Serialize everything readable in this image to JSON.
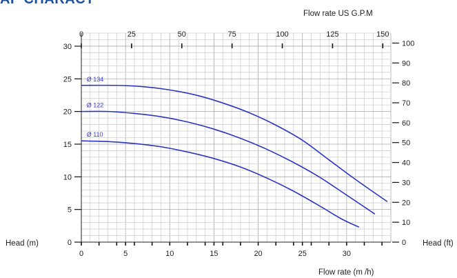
{
  "header": {
    "title": "AP CHARACT"
  },
  "chart_data": {
    "type": "line",
    "title": "",
    "xlabel": "Flow rate (m /h)",
    "x2label": "Flow rate US G.P.M",
    "ylabel": "Head (m)",
    "y2label": "Head (ft)",
    "xlim": [
      0,
      35
    ],
    "x2lim": [
      0,
      154
    ],
    "ylim": [
      0,
      32
    ],
    "y2lim": [
      0,
      105
    ],
    "x_ticks": [
      0,
      5,
      10,
      15,
      20,
      25,
      30
    ],
    "x2_ticks": [
      0,
      25,
      50,
      75,
      100,
      125,
      150
    ],
    "y_ticks": [
      0,
      5,
      10,
      15,
      20,
      25,
      30
    ],
    "y2_ticks": [
      0,
      10,
      20,
      30,
      40,
      50,
      60,
      70,
      80,
      90,
      100
    ],
    "grid": true,
    "line_color": "#2b35c2",
    "series": [
      {
        "name": "Ø 134",
        "x": [
          0,
          4,
          7,
          10,
          13,
          16,
          19,
          22,
          25,
          28,
          31,
          34.6
        ],
        "y": [
          24,
          24,
          23.8,
          23.3,
          22.5,
          21.3,
          19.8,
          17.9,
          15.6,
          12.6,
          9.6,
          6.2
        ]
      },
      {
        "name": "Ø 122",
        "x": [
          0,
          3,
          6,
          9,
          12,
          15,
          18,
          21,
          24,
          27,
          30,
          33.2
        ],
        "y": [
          20,
          20,
          19.7,
          19.2,
          18.4,
          17.3,
          15.9,
          14.2,
          12.2,
          9.9,
          7.2,
          4.3
        ]
      },
      {
        "name": "Ø 110",
        "x": [
          0,
          3,
          6,
          9,
          12,
          15,
          18,
          21,
          24,
          27,
          29.5,
          31.4
        ],
        "y": [
          15.5,
          15.4,
          15.1,
          14.6,
          13.8,
          12.8,
          11.5,
          9.8,
          7.8,
          5.5,
          3.5,
          2.3
        ]
      }
    ]
  }
}
